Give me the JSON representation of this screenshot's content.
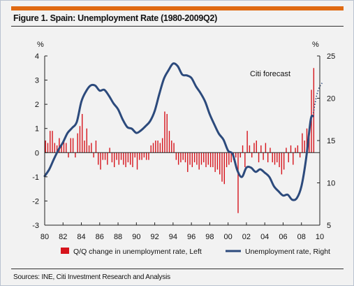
{
  "figure": {
    "title": "Figure 1. Spain: Unemployment Rate (1980-2009Q2)",
    "source": "Sources: INE, Citi Investment Research and Analysis",
    "accent_color": "#e06a12"
  },
  "chart_data": {
    "type": "bar+line",
    "title": "Figure 1. Spain: Unemployment Rate (1980-2009Q2)",
    "left_axis": {
      "unit": "%",
      "range": [
        -3,
        4
      ],
      "ticks": [
        "4",
        "3",
        "2",
        "1",
        "0",
        "-1",
        "-2",
        "-3"
      ],
      "tick_values": [
        4,
        3,
        2,
        1,
        0,
        -1,
        -2,
        -3
      ]
    },
    "right_axis": {
      "unit": "%",
      "range": [
        5,
        25
      ],
      "ticks": [
        "25",
        "20",
        "15",
        "10",
        "5"
      ],
      "tick_values": [
        25,
        20,
        15,
        10,
        5
      ]
    },
    "x_axis": {
      "range": [
        1980,
        2010
      ],
      "ticks": [
        "80",
        "82",
        "84",
        "86",
        "88",
        "90",
        "92",
        "94",
        "96",
        "98",
        "00",
        "02",
        "04",
        "06",
        "08",
        "10"
      ],
      "tick_values": [
        1980,
        1982,
        1984,
        1986,
        1988,
        1990,
        1992,
        1994,
        1996,
        1998,
        2000,
        2002,
        2004,
        2006,
        2008,
        2010
      ]
    },
    "grid": false,
    "legend_position": "bottom",
    "series": [
      {
        "name": "Q/Q change in unemployment rate, Left",
        "type": "bar",
        "axis": "left",
        "color": "#d6141c",
        "x": [
          1980.0,
          1980.25,
          1980.5,
          1980.75,
          1981.0,
          1981.25,
          1981.5,
          1981.75,
          1982.0,
          1982.25,
          1982.5,
          1982.75,
          1983.0,
          1983.25,
          1983.5,
          1983.75,
          1984.0,
          1984.25,
          1984.5,
          1984.75,
          1985.0,
          1985.25,
          1985.5,
          1985.75,
          1986.0,
          1986.25,
          1986.5,
          1986.75,
          1987.0,
          1987.25,
          1987.5,
          1987.75,
          1988.0,
          1988.25,
          1988.5,
          1988.75,
          1989.0,
          1989.25,
          1989.5,
          1989.75,
          1990.0,
          1990.25,
          1990.5,
          1990.75,
          1991.0,
          1991.25,
          1991.5,
          1991.75,
          1992.0,
          1992.25,
          1992.5,
          1992.75,
          1993.0,
          1993.25,
          1993.5,
          1993.75,
          1994.0,
          1994.25,
          1994.5,
          1994.75,
          1995.0,
          1995.25,
          1995.5,
          1995.75,
          1996.0,
          1996.25,
          1996.5,
          1996.75,
          1997.0,
          1997.25,
          1997.5,
          1997.75,
          1998.0,
          1998.25,
          1998.5,
          1998.75,
          1999.0,
          1999.25,
          1999.5,
          1999.75,
          2000.0,
          2000.25,
          2000.5,
          2000.75,
          2001.0,
          2001.25,
          2001.5,
          2001.75,
          2002.0,
          2002.25,
          2002.5,
          2002.75,
          2003.0,
          2003.25,
          2003.5,
          2003.75,
          2004.0,
          2004.25,
          2004.5,
          2004.75,
          2005.0,
          2005.25,
          2005.5,
          2005.75,
          2006.0,
          2006.25,
          2006.5,
          2006.75,
          2007.0,
          2007.25,
          2007.5,
          2007.75,
          2008.0,
          2008.25,
          2008.5,
          2008.75,
          2009.0,
          2009.25
        ],
        "values": [
          0.5,
          0.4,
          0.9,
          0.9,
          0.4,
          0.3,
          0.6,
          0.3,
          0.5,
          0.4,
          -0.2,
          0.6,
          0.6,
          -0.2,
          0.8,
          1.1,
          1.6,
          0.5,
          1.0,
          0.3,
          0.4,
          -0.2,
          0.5,
          -0.5,
          -0.7,
          -0.3,
          -0.3,
          -0.5,
          0.2,
          -0.4,
          -0.6,
          -0.3,
          -0.5,
          -0.3,
          -0.5,
          -0.6,
          -0.4,
          -0.5,
          -0.6,
          -0.2,
          -0.7,
          -0.3,
          -0.3,
          -0.2,
          -0.3,
          -0.3,
          0.3,
          0.4,
          0.5,
          0.5,
          0.4,
          0.6,
          1.7,
          1.6,
          0.9,
          0.5,
          0.4,
          -0.3,
          -0.5,
          -0.4,
          -0.3,
          -0.4,
          -0.8,
          -0.5,
          -0.6,
          -0.4,
          -0.5,
          -0.7,
          -0.5,
          -0.4,
          -0.6,
          -0.5,
          -0.6,
          -0.6,
          -0.8,
          -0.7,
          -0.9,
          -1.2,
          -1.3,
          -0.6,
          -0.5,
          -0.4,
          -0.3,
          -0.2,
          -2.5,
          -0.2,
          0.3,
          -0.6,
          0.9,
          0.3,
          -0.2,
          0.4,
          0.5,
          -0.4,
          0.3,
          -0.3,
          0.4,
          -0.4,
          0.2,
          -0.4,
          -0.5,
          -0.4,
          -0.6,
          -0.9,
          -0.7,
          0.2,
          -0.4,
          0.3,
          -0.5,
          0.2,
          0.3,
          -0.2,
          0.8,
          0.5,
          1.0,
          0.9,
          2.6,
          3.5
        ]
      },
      {
        "name": "Unemployment rate, Right",
        "type": "line",
        "axis": "right",
        "color": "#2c4a7c",
        "x": [
          1980.0,
          1980.5,
          1981.0,
          1981.5,
          1982.0,
          1982.5,
          1983.0,
          1983.5,
          1984.0,
          1984.5,
          1985.0,
          1985.5,
          1986.0,
          1986.5,
          1987.0,
          1987.5,
          1988.0,
          1988.5,
          1989.0,
          1989.5,
          1990.0,
          1990.5,
          1991.0,
          1991.5,
          1992.0,
          1992.5,
          1993.0,
          1993.5,
          1994.0,
          1994.5,
          1995.0,
          1995.5,
          1996.0,
          1996.5,
          1997.0,
          1997.5,
          1998.0,
          1998.5,
          1999.0,
          1999.5,
          2000.0,
          2000.5,
          2001.0,
          2001.5,
          2002.0,
          2002.5,
          2003.0,
          2003.5,
          2004.0,
          2004.5,
          2005.0,
          2005.5,
          2006.0,
          2006.5,
          2007.0,
          2007.5,
          2008.0,
          2008.5,
          2009.0,
          2009.25
        ],
        "values": [
          10.8,
          11.6,
          12.8,
          13.9,
          14.8,
          15.9,
          16.5,
          17.2,
          19.6,
          20.8,
          21.5,
          21.5,
          20.9,
          21.0,
          20.3,
          19.4,
          18.7,
          17.5,
          16.6,
          16.4,
          15.9,
          16.2,
          16.7,
          17.3,
          18.5,
          20.5,
          22.3,
          23.3,
          24.1,
          23.8,
          22.8,
          22.7,
          22.4,
          21.4,
          20.6,
          19.6,
          18.1,
          16.9,
          15.8,
          15.1,
          13.8,
          13.4,
          11.5,
          10.7,
          11.8,
          11.8,
          11.3,
          11.6,
          11.2,
          10.7,
          9.6,
          9.0,
          8.5,
          8.6,
          8.0,
          8.2,
          9.6,
          12.8,
          17.4,
          17.9
        ]
      },
      {
        "name": "Citi forecast",
        "type": "line",
        "style": "dotted",
        "axis": "right",
        "color": "#2c4a7c",
        "x": [
          2009.25,
          2009.5,
          2009.75,
          2010.0,
          2010.25
        ],
        "values": [
          17.9,
          19.5,
          20.7,
          21.4,
          21.8
        ]
      }
    ],
    "annotations": [
      {
        "text": "Citi forecast",
        "x": 2007.6,
        "y_right": 23.0
      }
    ]
  }
}
